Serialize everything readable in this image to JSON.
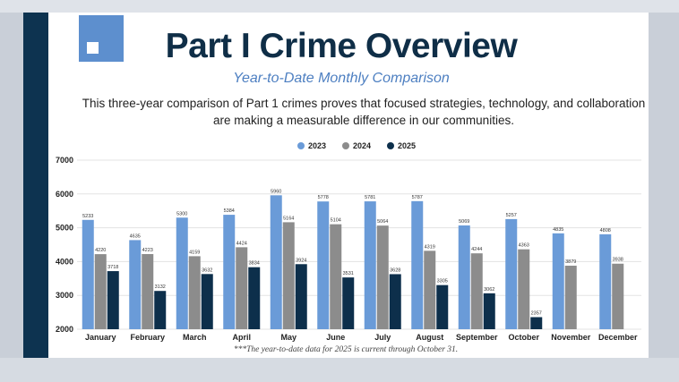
{
  "header": {
    "title": "Part I Crime Overview",
    "subtitle": "Year-to-Date Monthly Comparison",
    "description": "This three-year comparison of Part 1 crimes proves that focused strategies, technology, and collaboration are making a measurable difference in our communities."
  },
  "footnote": "***The year-to-date data for 2025 is current through October 31.",
  "colors": {
    "series_2023": "#6a9bd8",
    "series_2024": "#8c8c8c",
    "series_2025": "#0d2f4b",
    "sidebar": "#0d3350",
    "title": "#0f2e47",
    "subtitle": "#4d7fc1"
  },
  "chart_data": {
    "type": "bar",
    "title": "",
    "xlabel": "",
    "ylabel": "",
    "ylim": [
      2000,
      7000
    ],
    "yticks": [
      2000,
      3000,
      4000,
      5000,
      6000,
      7000
    ],
    "grid": true,
    "legend_position": "top",
    "categories": [
      "January",
      "February",
      "March",
      "April",
      "May",
      "June",
      "July",
      "August",
      "September",
      "October",
      "November",
      "December"
    ],
    "series": [
      {
        "name": "2023",
        "values": [
          5233,
          4635,
          5300,
          5384,
          5960,
          5778,
          5781,
          5787,
          5069,
          5257,
          4835,
          4808
        ]
      },
      {
        "name": "2024",
        "values": [
          4220,
          4223,
          4159,
          4424,
          5164,
          5104,
          5064,
          4319,
          4244,
          4363,
          3879,
          3938
        ]
      },
      {
        "name": "2025",
        "values": [
          3718,
          3132,
          3632,
          3834,
          3924,
          3531,
          3628,
          3305,
          3062,
          2357,
          null,
          null
        ]
      }
    ]
  }
}
